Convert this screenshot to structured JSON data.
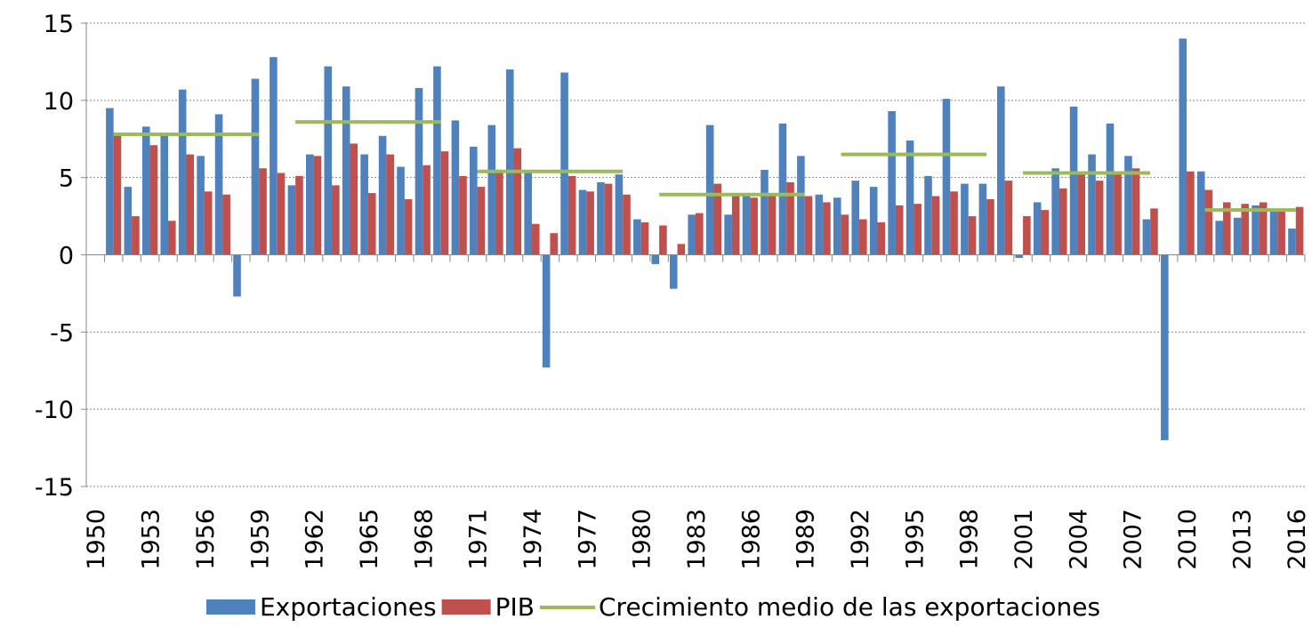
{
  "chart_data": {
    "type": "bar",
    "categories": [
      "1950",
      null,
      null,
      "1953",
      null,
      null,
      "1956",
      null,
      null,
      "1959",
      null,
      null,
      "1962",
      null,
      null,
      "1965",
      null,
      null,
      "1968",
      null,
      null,
      "1971",
      null,
      null,
      "1974",
      null,
      null,
      "1977",
      null,
      null,
      "1980",
      null,
      null,
      "1983",
      null,
      null,
      "1986",
      null,
      null,
      "1989",
      null,
      null,
      "1992",
      null,
      null,
      "1995",
      null,
      null,
      "1998",
      null,
      null,
      "2001",
      null,
      null,
      "2004",
      null,
      null,
      "2007",
      null,
      null,
      "2010",
      null,
      null,
      "2013",
      null,
      null,
      "2016"
    ],
    "series": [
      {
        "name": "Exportaciones",
        "color": "#4f81bd",
        "values": [
          null,
          9.5,
          4.4,
          8.3,
          7.7,
          10.7,
          6.4,
          9.1,
          -2.7,
          11.4,
          12.8,
          4.5,
          6.5,
          12.2,
          10.9,
          6.5,
          7.7,
          5.7,
          10.8,
          12.2,
          8.7,
          7.0,
          8.4,
          12.0,
          5.4,
          -7.3,
          11.8,
          4.2,
          4.7,
          5.2,
          2.3,
          -0.6,
          -2.2,
          2.6,
          8.4,
          2.6,
          3.8,
          5.5,
          8.5,
          6.4,
          3.9,
          3.7,
          4.8,
          4.4,
          9.3,
          7.4,
          5.1,
          10.1,
          4.6,
          4.6,
          10.9,
          -0.2,
          3.4,
          5.6,
          9.6,
          6.5,
          8.5,
          6.4,
          2.3,
          -12.0,
          14.0,
          5.4,
          2.2,
          2.4,
          3.2,
          2.9,
          1.7
        ]
      },
      {
        "name": "PIB",
        "color": "#c0504d",
        "values": [
          null,
          7.8,
          2.5,
          7.1,
          2.2,
          6.5,
          4.1,
          3.9,
          0,
          5.6,
          5.3,
          5.1,
          6.4,
          4.5,
          7.2,
          4.0,
          6.5,
          3.6,
          5.8,
          6.7,
          5.1,
          4.4,
          5.5,
          6.9,
          2.0,
          1.4,
          5.1,
          4.1,
          4.6,
          3.9,
          2.1,
          1.9,
          0.7,
          2.7,
          4.6,
          3.9,
          3.7,
          4.0,
          4.7,
          3.8,
          3.4,
          2.6,
          2.3,
          2.1,
          3.2,
          3.3,
          3.8,
          4.1,
          2.5,
          3.6,
          4.8,
          2.5,
          2.9,
          4.3,
          5.4,
          4.8,
          5.4,
          5.6,
          3.0,
          0,
          5.4,
          4.2,
          3.4,
          3.3,
          3.4,
          3.0,
          3.1
        ]
      },
      {
        "name": "Crecimiento medio de las exportaciones",
        "type": "line",
        "color": "#9bbb59",
        "values": [
          null,
          7.8,
          7.8,
          7.8,
          7.8,
          7.8,
          7.8,
          7.8,
          7.8,
          7.8,
          null,
          8.6,
          8.6,
          8.6,
          8.6,
          8.6,
          8.6,
          8.6,
          8.6,
          8.6,
          null,
          5.4,
          5.4,
          5.4,
          5.4,
          5.4,
          5.4,
          5.4,
          5.4,
          5.4,
          null,
          3.9,
          3.9,
          3.9,
          3.9,
          3.9,
          3.9,
          3.9,
          3.9,
          3.9,
          null,
          6.5,
          6.5,
          6.5,
          6.5,
          6.5,
          6.5,
          6.5,
          6.5,
          6.5,
          null,
          5.3,
          5.3,
          5.3,
          5.3,
          5.3,
          5.3,
          5.3,
          5.3,
          null,
          null,
          2.9,
          2.9,
          2.9,
          2.9,
          2.9,
          2.9
        ]
      }
    ],
    "ylim": [
      -15,
      15
    ],
    "yticks": [
      -15,
      -10,
      -5,
      0,
      5,
      10,
      15
    ],
    "grid": true,
    "legend": "bottom"
  }
}
